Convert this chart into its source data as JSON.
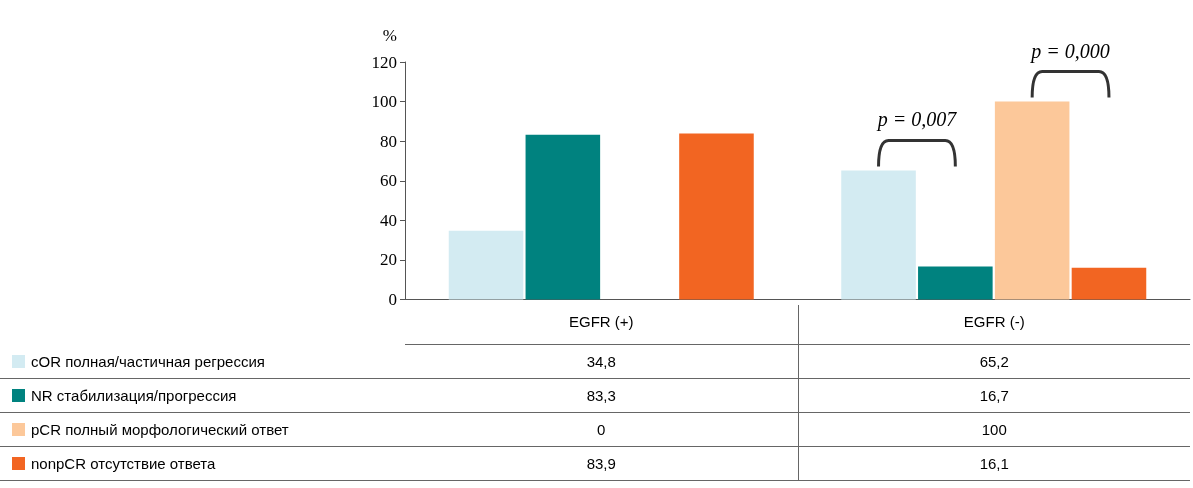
{
  "chart_data": {
    "type": "bar",
    "ylabel": "%",
    "categories": [
      "EGFR (+)",
      "EGFR (-)"
    ],
    "series": [
      {
        "name": "cOR полная/частичная регрессия",
        "color": "#d3ebf2",
        "values": [
          34.8,
          65.2
        ],
        "value_labels": [
          "34,8",
          "65,2"
        ]
      },
      {
        "name": "NR стабилизация/прогрессия",
        "color": "#00827f",
        "values": [
          83.3,
          16.7
        ],
        "value_labels": [
          "83,3",
          "16,7"
        ]
      },
      {
        "name": "pCR полный морфологический ответ",
        "color": "#fcc89a",
        "values": [
          0,
          100
        ],
        "value_labels": [
          "0",
          "100"
        ]
      },
      {
        "name": "nonpCR отсутствие ответа",
        "color": "#f26522",
        "values": [
          83.9,
          16.1
        ],
        "value_labels": [
          "83,9",
          "16,1"
        ]
      }
    ],
    "ylim": [
      0,
      120
    ],
    "yticks": [
      0,
      20,
      40,
      60,
      80,
      100,
      120
    ],
    "grid": false,
    "legend": "bottom left",
    "annotations": [
      "p = 0,007",
      "p = 0,000"
    ]
  }
}
